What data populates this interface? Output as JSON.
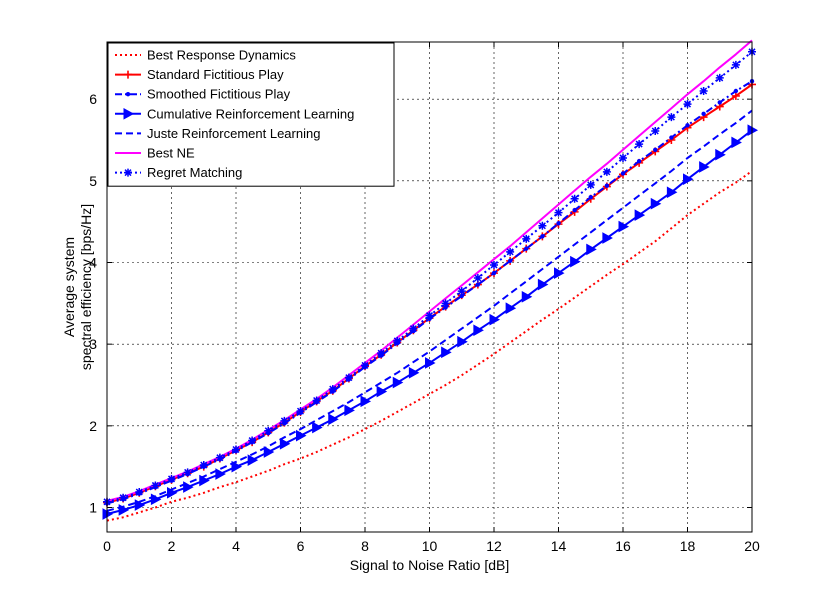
{
  "chart_data": {
    "type": "line",
    "title": "",
    "xlabel": "Signal to Noise Ratio [dB]",
    "ylabel_lines": [
      "Average system",
      "spectral efficiency [bps/Hz]"
    ],
    "xlim": [
      0,
      20
    ],
    "ylim": [
      0.7,
      6.7
    ],
    "xticks": [
      0,
      2,
      4,
      6,
      8,
      10,
      12,
      14,
      16,
      18,
      20
    ],
    "yticks": [
      1,
      2,
      3,
      4,
      5,
      6
    ],
    "grid": true,
    "legend_position": "top-left",
    "x": [
      0,
      0.5,
      1,
      1.5,
      2,
      2.5,
      3,
      3.5,
      4,
      4.5,
      5,
      5.5,
      6,
      6.5,
      7,
      7.5,
      8,
      8.5,
      9,
      9.5,
      10,
      10.5,
      11,
      11.5,
      12,
      12.5,
      13,
      13.5,
      14,
      14.5,
      15,
      15.5,
      16,
      16.5,
      17,
      17.5,
      18,
      18.5,
      19,
      19.5,
      20
    ],
    "series": [
      {
        "name": "Best Response Dynamics",
        "color": "#ff0000",
        "style": "dotted",
        "marker": "none",
        "values": [
          0.84,
          0.88,
          0.94,
          1.0,
          1.07,
          1.12,
          1.18,
          1.25,
          1.31,
          1.38,
          1.45,
          1.53,
          1.6,
          1.68,
          1.77,
          1.86,
          1.96,
          2.06,
          2.17,
          2.28,
          2.39,
          2.5,
          2.62,
          2.75,
          2.88,
          3.02,
          3.16,
          3.3,
          3.43,
          3.57,
          3.71,
          3.85,
          3.98,
          4.12,
          4.26,
          4.42,
          4.58,
          4.72,
          4.86,
          4.98,
          5.12
        ]
      },
      {
        "name": "Standard Fictitious Play",
        "color": "#ff0000",
        "style": "solid",
        "marker": "plus",
        "values": [
          1.06,
          1.11,
          1.18,
          1.26,
          1.34,
          1.42,
          1.5,
          1.6,
          1.7,
          1.8,
          1.92,
          2.04,
          2.17,
          2.3,
          2.43,
          2.58,
          2.73,
          2.87,
          3.02,
          3.17,
          3.32,
          3.46,
          3.6,
          3.73,
          3.87,
          4.02,
          4.17,
          4.32,
          4.47,
          4.62,
          4.78,
          4.93,
          5.08,
          5.22,
          5.36,
          5.5,
          5.65,
          5.78,
          5.91,
          6.04,
          6.18
        ]
      },
      {
        "name": "Smoothed Fictitious Play",
        "color": "#0000ff",
        "style": "dashdot",
        "marker": "point",
        "values": [
          1.05,
          1.1,
          1.17,
          1.25,
          1.33,
          1.41,
          1.5,
          1.59,
          1.69,
          1.8,
          1.91,
          2.03,
          2.16,
          2.29,
          2.42,
          2.57,
          2.72,
          2.86,
          3.01,
          3.16,
          3.31,
          3.45,
          3.59,
          3.73,
          3.87,
          4.02,
          4.17,
          4.32,
          4.48,
          4.64,
          4.8,
          4.94,
          5.09,
          5.24,
          5.38,
          5.53,
          5.68,
          5.82,
          5.96,
          6.1,
          6.22
        ]
      },
      {
        "name": "Cumulative Reinforcement Learning",
        "color": "#0000ff",
        "style": "solid",
        "marker": "triangle-right",
        "values": [
          0.92,
          0.97,
          1.03,
          1.1,
          1.18,
          1.25,
          1.33,
          1.41,
          1.5,
          1.58,
          1.68,
          1.78,
          1.88,
          1.98,
          2.08,
          2.19,
          2.3,
          2.42,
          2.53,
          2.65,
          2.77,
          2.9,
          3.03,
          3.17,
          3.3,
          3.44,
          3.58,
          3.73,
          3.87,
          4.01,
          4.16,
          4.3,
          4.44,
          4.58,
          4.72,
          4.86,
          5.02,
          5.17,
          5.32,
          5.47,
          5.62
        ]
      },
      {
        "name": "Juste Reinforcement Learning",
        "color": "#0000ff",
        "style": "dashed",
        "marker": "none",
        "values": [
          0.96,
          1.01,
          1.07,
          1.14,
          1.22,
          1.3,
          1.38,
          1.47,
          1.56,
          1.65,
          1.75,
          1.86,
          1.96,
          2.07,
          2.18,
          2.29,
          2.41,
          2.53,
          2.65,
          2.78,
          2.91,
          3.05,
          3.19,
          3.33,
          3.47,
          3.62,
          3.77,
          3.92,
          4.07,
          4.22,
          4.37,
          4.52,
          4.67,
          4.82,
          4.97,
          5.12,
          5.28,
          5.42,
          5.57,
          5.71,
          5.86
        ]
      },
      {
        "name": "Best NE",
        "color": "#ff00ff",
        "style": "solid",
        "marker": "none",
        "values": [
          1.08,
          1.13,
          1.2,
          1.28,
          1.36,
          1.44,
          1.53,
          1.62,
          1.72,
          1.83,
          1.95,
          2.07,
          2.2,
          2.33,
          2.47,
          2.62,
          2.77,
          2.92,
          3.08,
          3.24,
          3.4,
          3.56,
          3.72,
          3.88,
          4.04,
          4.2,
          4.37,
          4.54,
          4.71,
          4.88,
          5.05,
          5.21,
          5.38,
          5.55,
          5.72,
          5.89,
          6.06,
          6.22,
          6.39,
          6.55,
          6.72
        ]
      },
      {
        "name": "Regret Matching",
        "color": "#0000ff",
        "style": "dotted",
        "marker": "star",
        "values": [
          1.07,
          1.12,
          1.19,
          1.27,
          1.35,
          1.43,
          1.52,
          1.61,
          1.71,
          1.82,
          1.94,
          2.06,
          2.18,
          2.31,
          2.45,
          2.59,
          2.74,
          2.89,
          3.04,
          3.19,
          3.35,
          3.5,
          3.65,
          3.81,
          3.97,
          4.13,
          4.29,
          4.45,
          4.61,
          4.78,
          4.95,
          5.11,
          5.28,
          5.45,
          5.61,
          5.78,
          5.94,
          6.1,
          6.26,
          6.42,
          6.58
        ]
      }
    ]
  }
}
